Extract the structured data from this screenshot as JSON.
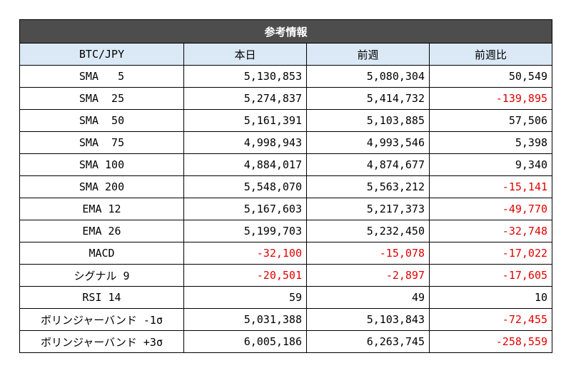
{
  "title": "参考情報",
  "columns": [
    "BTC/JPY",
    "本日",
    "前週",
    "前週比"
  ],
  "rows": [
    {
      "label": "SMA   5",
      "today": "5,130,853",
      "prev": "5,080,304",
      "diff": "50,549"
    },
    {
      "label": "SMA  25",
      "today": "5,274,837",
      "prev": "5,414,732",
      "diff": "-139,895"
    },
    {
      "label": "SMA  50",
      "today": "5,161,391",
      "prev": "5,103,885",
      "diff": "57,506"
    },
    {
      "label": "SMA  75",
      "today": "4,998,943",
      "prev": "4,993,546",
      "diff": "5,398"
    },
    {
      "label": "SMA 100",
      "today": "4,884,017",
      "prev": "4,874,677",
      "diff": "9,340"
    },
    {
      "label": "SMA 200",
      "today": "5,548,070",
      "prev": "5,563,212",
      "diff": "-15,141"
    },
    {
      "label": "EMA 12",
      "today": "5,167,603",
      "prev": "5,217,373",
      "diff": "-49,770"
    },
    {
      "label": "EMA 26",
      "today": "5,199,703",
      "prev": "5,232,450",
      "diff": "-32,748"
    },
    {
      "label": "MACD",
      "today": "-32,100",
      "prev": "-15,078",
      "diff": "-17,022"
    },
    {
      "label": "シグナル 9",
      "today": "-20,501",
      "prev": "-2,897",
      "diff": "-17,605"
    },
    {
      "label": "RSI 14",
      "today": "59",
      "prev": "49",
      "diff": "10"
    },
    {
      "label": "ボリンジャーバンド -1σ",
      "today": "5,031,388",
      "prev": "5,103,843",
      "diff": "-72,455"
    },
    {
      "label": "ボリンジャーバンド +3σ",
      "today": "6,005,186",
      "prev": "6,263,745",
      "diff": "-258,559"
    }
  ],
  "colors": {
    "header_bg": "#4d4d4d",
    "subheader_bg": "#dbe9f7",
    "negative": "#e00000"
  }
}
